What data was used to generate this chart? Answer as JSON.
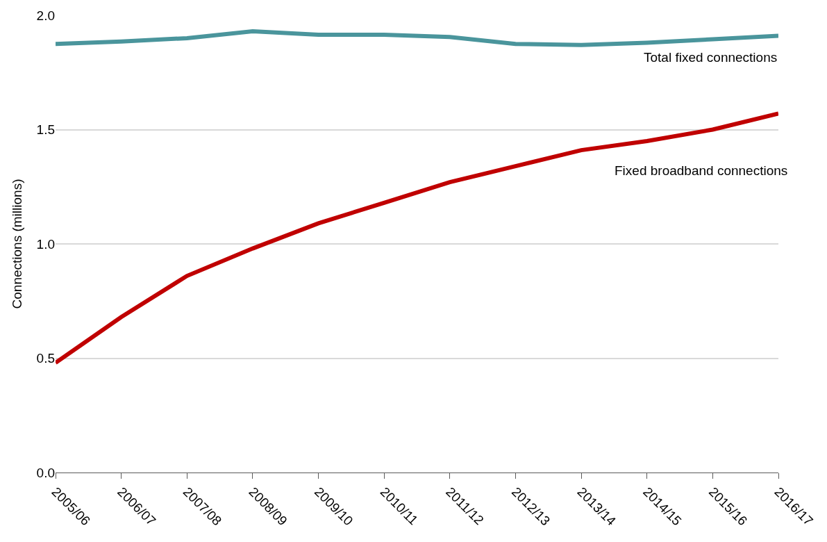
{
  "chart_data": {
    "type": "line",
    "ylabel": "Connections (millions)",
    "categories": [
      "2005/06",
      "2006/07",
      "2007/08",
      "2008/09",
      "2009/10",
      "2010/11",
      "2011/12",
      "2012/13",
      "2013/14",
      "2014/15",
      "2015/16",
      "2016/17"
    ],
    "series": [
      {
        "name": "Total fixed connections",
        "color": "#4a959c",
        "values": [
          1.875,
          1.885,
          1.9,
          1.93,
          1.915,
          1.915,
          1.905,
          1.875,
          1.87,
          1.88,
          1.895,
          1.91
        ]
      },
      {
        "name": "Fixed broadband connections",
        "color": "#c00000",
        "values": [
          0.48,
          0.68,
          0.86,
          0.98,
          1.09,
          1.18,
          1.27,
          1.34,
          1.41,
          1.45,
          1.5,
          1.57
        ]
      }
    ],
    "ylim": [
      0,
      2.0
    ],
    "yticks": [
      {
        "value": 0,
        "label": "0.0"
      },
      {
        "value": 0.5,
        "label": "0.5"
      },
      {
        "value": 1.0,
        "label": "1.0"
      },
      {
        "value": 1.5,
        "label": "1.5"
      },
      {
        "value": 2.0,
        "label": "2.0"
      }
    ],
    "grid": "y",
    "legend": false,
    "marker": "none",
    "line_style": "solid"
  }
}
